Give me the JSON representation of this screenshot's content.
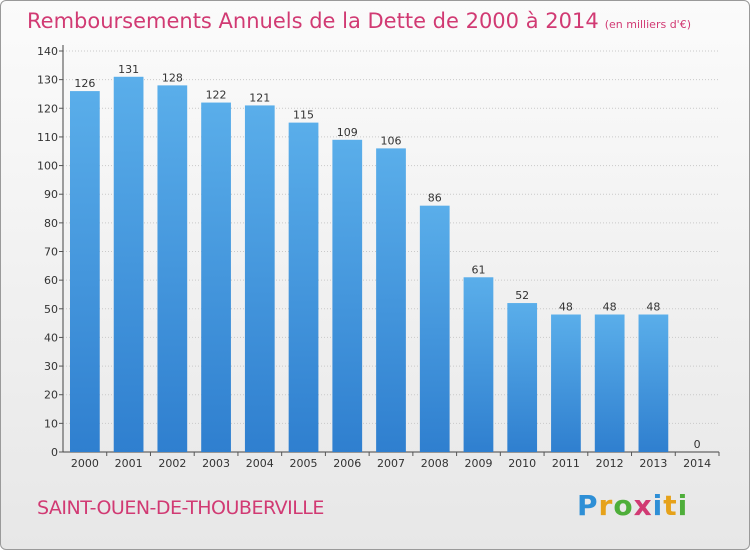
{
  "header": {
    "title": "Remboursements Annuels de la Dette de 2000 à 2014",
    "unit": "(en milliers d'€)"
  },
  "footer": {
    "commune": "SAINT-OUEN-DE-THOUBERVILLE",
    "logo": "Proxiti"
  },
  "colors": {
    "accent": "#d13a73",
    "bar_top": "#5aaeea",
    "bar_bottom": "#2f7fcf"
  },
  "chart_data": {
    "type": "bar",
    "title": "Remboursements Annuels de la Dette de 2000 à 2014",
    "categories": [
      "2000",
      "2001",
      "2002",
      "2003",
      "2004",
      "2005",
      "2006",
      "2007",
      "2008",
      "2009",
      "2010",
      "2011",
      "2012",
      "2013",
      "2014"
    ],
    "values": [
      126,
      131,
      128,
      122,
      121,
      115,
      109,
      106,
      86,
      61,
      52,
      48,
      48,
      48,
      0
    ],
    "ylim": [
      0,
      140
    ],
    "yticks": [
      0,
      10,
      20,
      30,
      40,
      50,
      60,
      70,
      80,
      90,
      100,
      110,
      120,
      130,
      140
    ],
    "grid": true,
    "data_labels": true
  }
}
